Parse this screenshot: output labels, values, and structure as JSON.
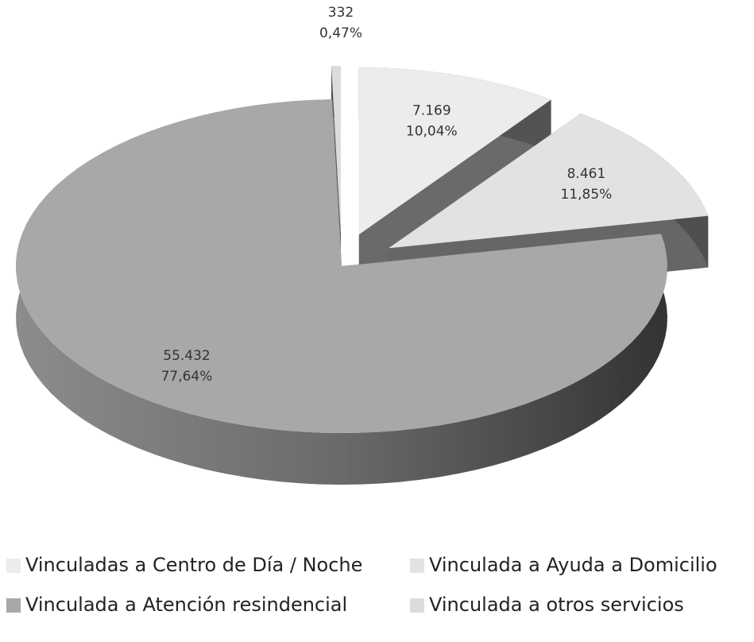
{
  "chart_data": {
    "type": "pie3d",
    "categories": [
      "Vinculadas a Centro de Día / Noche",
      "Vinculada a Ayuda a Domicilio",
      "Vinculada a Atención resindencial",
      "Vinculada a otros servicios"
    ],
    "values": [
      7169,
      8461,
      55432,
      332
    ],
    "value_labels": [
      "7.169",
      "8.461",
      "55.432",
      "332"
    ],
    "percentages": [
      10.04,
      11.85,
      77.64,
      0.47
    ],
    "percentage_labels": [
      "10,04%",
      "11,85%",
      "77,64%",
      "0,47%"
    ],
    "colors": [
      "#ececec",
      "#e2e2e2",
      "#a8a8a8",
      "#dcdcdc"
    ],
    "legend": "bottom"
  }
}
